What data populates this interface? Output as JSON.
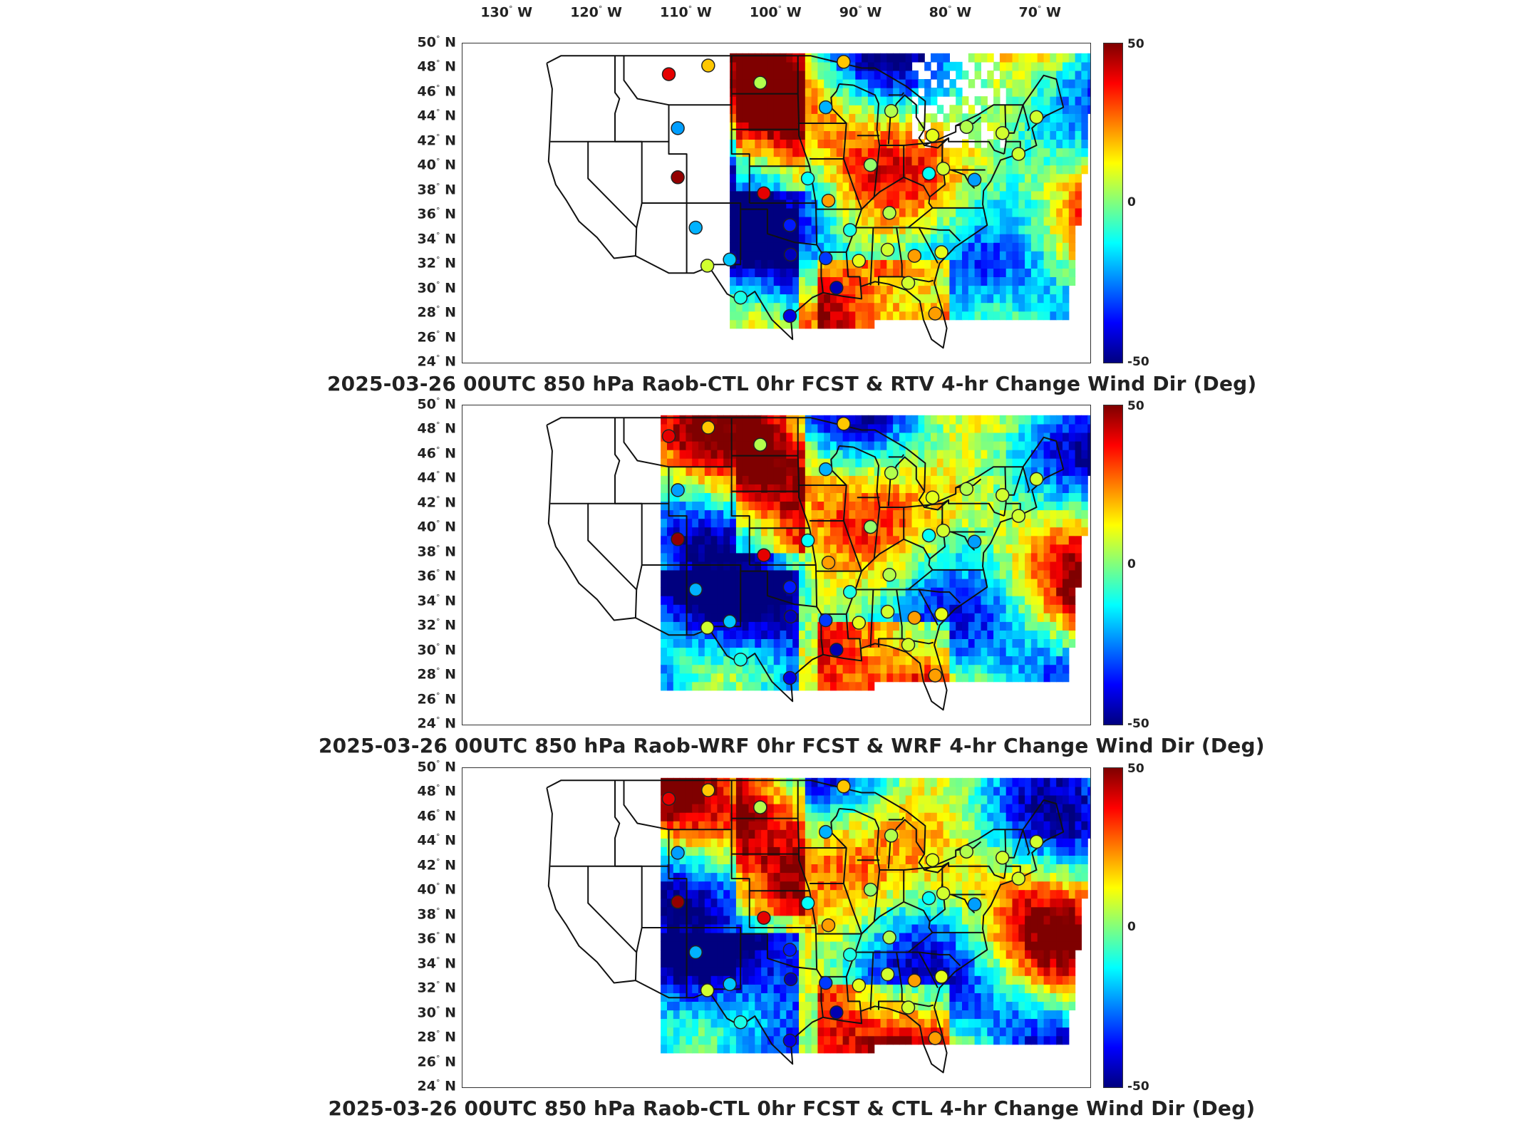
{
  "longitude_labels": [
    {
      "deg": "130",
      "hemi": "W"
    },
    {
      "deg": "120",
      "hemi": "W"
    },
    {
      "deg": "110",
      "hemi": "W"
    },
    {
      "deg": "100",
      "hemi": "W"
    },
    {
      "deg": "90",
      "hemi": "W"
    },
    {
      "deg": "80",
      "hemi": "W"
    },
    {
      "deg": "70",
      "hemi": "W"
    }
  ],
  "latitude_labels": [
    {
      "deg": "50",
      "hemi": "N"
    },
    {
      "deg": "48",
      "hemi": "N"
    },
    {
      "deg": "46",
      "hemi": "N"
    },
    {
      "deg": "44",
      "hemi": "N"
    },
    {
      "deg": "42",
      "hemi": "N"
    },
    {
      "deg": "40",
      "hemi": "N"
    },
    {
      "deg": "38",
      "hemi": "N"
    },
    {
      "deg": "36",
      "hemi": "N"
    },
    {
      "deg": "34",
      "hemi": "N"
    },
    {
      "deg": "32",
      "hemi": "N"
    },
    {
      "deg": "30",
      "hemi": "N"
    },
    {
      "deg": "28",
      "hemi": "N"
    },
    {
      "deg": "26",
      "hemi": "N"
    },
    {
      "deg": "24",
      "hemi": "N"
    }
  ],
  "colorbar": {
    "max_label": "50",
    "mid_label": "0",
    "min_label": "-50",
    "colors": [
      "#00007f",
      "#0000ff",
      "#007fff",
      "#00ffff",
      "#7fff7f",
      "#ffff00",
      "#ff7f00",
      "#ff0000",
      "#7f0000"
    ]
  },
  "panels": [
    {
      "title": "2025-03-26 00UTC 850 hPa Raob-CTL 0hr FCST & RTV 4-hr Change Wind Dir (Deg)"
    },
    {
      "title": "2025-03-26 00UTC 850 hPa Raob-WRF 0hr FCST & WRF 4-hr Change Wind Dir (Deg)"
    },
    {
      "title": "2025-03-26 00UTC 850 hPa Raob-CTL 0hr FCST & CTL 4-hr Change Wind Dir (Deg)"
    }
  ],
  "raob_stations": [
    {
      "lon": -111.0,
      "lat": 47.5,
      "value": 40
    },
    {
      "lon": -106.6,
      "lat": 48.2,
      "value": 18
    },
    {
      "lon": -100.8,
      "lat": 46.8,
      "value": 5
    },
    {
      "lon": -110.0,
      "lat": 43.1,
      "value": -22
    },
    {
      "lon": -110.0,
      "lat": 39.1,
      "value": 48
    },
    {
      "lon": -108.0,
      "lat": 35.0,
      "value": -20
    },
    {
      "lon": -106.7,
      "lat": 31.9,
      "value": 8
    },
    {
      "lon": -104.2,
      "lat": 32.4,
      "value": -18
    },
    {
      "lon": -103.0,
      "lat": 29.3,
      "value": -10
    },
    {
      "lon": -100.4,
      "lat": 37.8,
      "value": 40
    },
    {
      "lon": -97.5,
      "lat": 35.2,
      "value": -35
    },
    {
      "lon": -97.4,
      "lat": 32.8,
      "value": -44
    },
    {
      "lon": -97.5,
      "lat": 27.8,
      "value": -40
    },
    {
      "lon": -95.5,
      "lat": 39.0,
      "value": -12
    },
    {
      "lon": -93.5,
      "lat": 44.8,
      "value": -20
    },
    {
      "lon": -93.5,
      "lat": 32.5,
      "value": -32
    },
    {
      "lon": -92.3,
      "lat": 30.1,
      "value": -45
    },
    {
      "lon": -91.5,
      "lat": 48.5,
      "value": 18
    },
    {
      "lon": -93.2,
      "lat": 37.2,
      "value": 22
    },
    {
      "lon": -90.8,
      "lat": 34.8,
      "value": -10
    },
    {
      "lon": -89.8,
      "lat": 32.3,
      "value": 10
    },
    {
      "lon": -88.5,
      "lat": 40.1,
      "value": 2
    },
    {
      "lon": -86.2,
      "lat": 44.5,
      "value": 5
    },
    {
      "lon": -86.4,
      "lat": 36.2,
      "value": 5
    },
    {
      "lon": -86.6,
      "lat": 33.2,
      "value": 8
    },
    {
      "lon": -84.3,
      "lat": 30.5,
      "value": 8
    },
    {
      "lon": -83.6,
      "lat": 32.7,
      "value": 22
    },
    {
      "lon": -81.6,
      "lat": 42.5,
      "value": 10
    },
    {
      "lon": -82.0,
      "lat": 39.4,
      "value": -12
    },
    {
      "lon": -81.3,
      "lat": 28.0,
      "value": 22
    },
    {
      "lon": -80.6,
      "lat": 33.0,
      "value": 10
    },
    {
      "lon": -80.4,
      "lat": 39.8,
      "value": 8
    },
    {
      "lon": -76.9,
      "lat": 38.9,
      "value": -22
    },
    {
      "lon": -77.8,
      "lat": 43.2,
      "value": 5
    },
    {
      "lon": -73.8,
      "lat": 42.7,
      "value": 8
    },
    {
      "lon": -72.0,
      "lat": 41.0,
      "value": 8
    },
    {
      "lon": -70.0,
      "lat": 44.0,
      "value": 8
    }
  ]
}
